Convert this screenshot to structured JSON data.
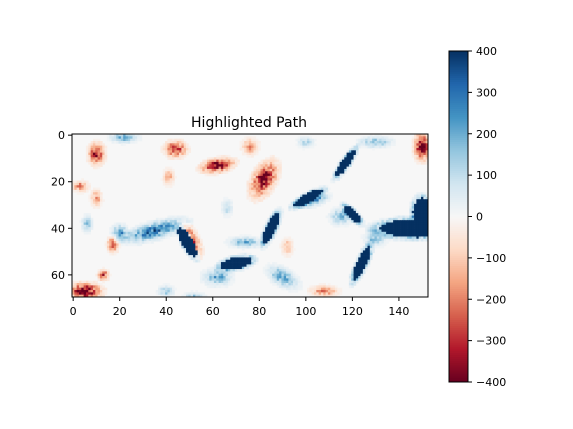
{
  "chart_data": {
    "type": "heatmap",
    "title": "Highlighted Path",
    "grid_shape": [
      70,
      153
    ],
    "x_ticks": [
      0,
      20,
      40,
      60,
      80,
      100,
      120,
      140
    ],
    "y_ticks": [
      0,
      20,
      40,
      60
    ],
    "xlim": [
      -0.5,
      152.5
    ],
    "ylim": [
      69.5,
      -0.5
    ],
    "colormap": "RdBu",
    "color_range": [
      -400,
      400
    ],
    "colorbar_ticks": [
      400,
      300,
      200,
      100,
      0,
      -100,
      -200,
      -300,
      -400
    ],
    "grid": false,
    "background_value": 0,
    "features": [
      {
        "kind": "blob",
        "x": 10,
        "y": 8,
        "rx": 3,
        "ry": 4,
        "angle": 0,
        "value": -330
      },
      {
        "kind": "blob",
        "x": 3,
        "y": 22,
        "rx": 3,
        "ry": 2,
        "angle": 0,
        "value": -200
      },
      {
        "kind": "blob",
        "x": 10,
        "y": 27,
        "rx": 2,
        "ry": 3,
        "angle": 0,
        "value": -180
      },
      {
        "kind": "blob",
        "x": 44,
        "y": 6,
        "rx": 4,
        "ry": 3,
        "angle": 0,
        "value": -320
      },
      {
        "kind": "blob",
        "x": 62,
        "y": 13,
        "rx": 6,
        "ry": 2.5,
        "angle": -10,
        "value": -400
      },
      {
        "kind": "blob",
        "x": 82,
        "y": 19,
        "rx": 4,
        "ry": 7,
        "angle": 30,
        "value": -380
      },
      {
        "kind": "blob",
        "x": 50,
        "y": 45,
        "rx": 3,
        "ry": 6,
        "angle": -30,
        "value": -400
      },
      {
        "kind": "blob",
        "x": 17,
        "y": 47,
        "rx": 2,
        "ry": 3,
        "angle": 0,
        "value": -250
      },
      {
        "kind": "blob",
        "x": 13,
        "y": 60,
        "rx": 2,
        "ry": 2,
        "angle": 0,
        "value": -280
      },
      {
        "kind": "blob",
        "x": 5,
        "y": 67,
        "rx": 6,
        "ry": 3,
        "angle": 0,
        "value": -400
      },
      {
        "kind": "blob",
        "x": 108,
        "y": 67,
        "rx": 5,
        "ry": 2,
        "angle": 0,
        "value": -200
      },
      {
        "kind": "blob",
        "x": 150,
        "y": 5,
        "rx": 3,
        "ry": 5,
        "angle": 0,
        "value": -380
      },
      {
        "kind": "blob",
        "x": 76,
        "y": 5,
        "rx": 3,
        "ry": 3,
        "angle": 0,
        "value": -180
      },
      {
        "kind": "blob",
        "x": 92,
        "y": 48,
        "rx": 2,
        "ry": 3,
        "angle": 0,
        "value": -150
      },
      {
        "kind": "blob",
        "x": 41,
        "y": 18,
        "rx": 2,
        "ry": 3,
        "angle": 0,
        "value": -150
      },
      {
        "kind": "blob",
        "x": 35,
        "y": 41,
        "rx": 11,
        "ry": 3,
        "angle": -15,
        "value": 300
      },
      {
        "kind": "blob",
        "x": 20,
        "y": 42,
        "rx": 3,
        "ry": 3,
        "angle": 0,
        "value": 220
      },
      {
        "kind": "blob",
        "x": 22,
        "y": 1,
        "rx": 5,
        "ry": 2,
        "angle": 0,
        "value": 200
      },
      {
        "kind": "blob",
        "x": 74,
        "y": 46,
        "rx": 6,
        "ry": 2,
        "angle": 0,
        "value": 180
      },
      {
        "kind": "blob",
        "x": 90,
        "y": 61,
        "rx": 6,
        "ry": 3,
        "angle": 30,
        "value": 220
      },
      {
        "kind": "blob",
        "x": 62,
        "y": 61,
        "rx": 5,
        "ry": 3,
        "angle": 0,
        "value": 200
      },
      {
        "kind": "blob",
        "x": 104,
        "y": 28,
        "rx": 5,
        "ry": 2,
        "angle": -20,
        "value": 220
      },
      {
        "kind": "blob",
        "x": 115,
        "y": 35,
        "rx": 4,
        "ry": 3,
        "angle": 0,
        "value": 170
      },
      {
        "kind": "blob",
        "x": 130,
        "y": 3,
        "rx": 6,
        "ry": 2,
        "angle": 0,
        "value": 170
      },
      {
        "kind": "blob",
        "x": 52,
        "y": 70,
        "rx": 4,
        "ry": 2,
        "angle": 0,
        "value": 160
      },
      {
        "kind": "blob",
        "x": 40,
        "y": 67,
        "rx": 3,
        "ry": 2,
        "angle": 0,
        "value": 150
      },
      {
        "kind": "blob",
        "x": 100,
        "y": 3,
        "rx": 3,
        "ry": 2,
        "angle": 0,
        "value": 120
      },
      {
        "kind": "blob",
        "x": 130,
        "y": 44,
        "rx": 4,
        "ry": 3,
        "angle": 0,
        "value": 150
      },
      {
        "kind": "blob",
        "x": 6,
        "y": 38,
        "rx": 2,
        "ry": 3,
        "angle": 0,
        "value": 150
      },
      {
        "kind": "blob",
        "x": 66,
        "y": 31,
        "rx": 2,
        "ry": 3,
        "angle": 0,
        "value": 120
      },
      {
        "kind": "solid",
        "x": 117,
        "y": 12,
        "rx": 1.8,
        "ry": 7,
        "angle": 35,
        "value": 400
      },
      {
        "kind": "solid",
        "x": 101,
        "y": 27,
        "rx": 2,
        "ry": 7,
        "angle": 62,
        "value": 400
      },
      {
        "kind": "solid",
        "x": 85,
        "y": 40,
        "rx": 2.2,
        "ry": 7,
        "angle": 25,
        "value": 400
      },
      {
        "kind": "solid",
        "x": 120,
        "y": 34,
        "rx": 1.8,
        "ry": 5,
        "angle": -45,
        "value": 400
      },
      {
        "kind": "solid",
        "x": 124,
        "y": 55,
        "rx": 2.2,
        "ry": 8,
        "angle": 25,
        "value": 400
      },
      {
        "kind": "solid",
        "x": 70,
        "y": 55,
        "rx": 2.6,
        "ry": 7,
        "angle": 78,
        "value": 400
      },
      {
        "kind": "solid",
        "x": 49,
        "y": 46,
        "rx": 2.4,
        "ry": 7,
        "angle": -30,
        "value": 400
      },
      {
        "kind": "solid",
        "x": 148,
        "y": 40,
        "rx": 16,
        "ry": 4,
        "angle": 0,
        "value": 400
      },
      {
        "kind": "solid",
        "x": 150,
        "y": 33,
        "rx": 4,
        "ry": 6,
        "angle": 0,
        "value": 400
      }
    ]
  }
}
